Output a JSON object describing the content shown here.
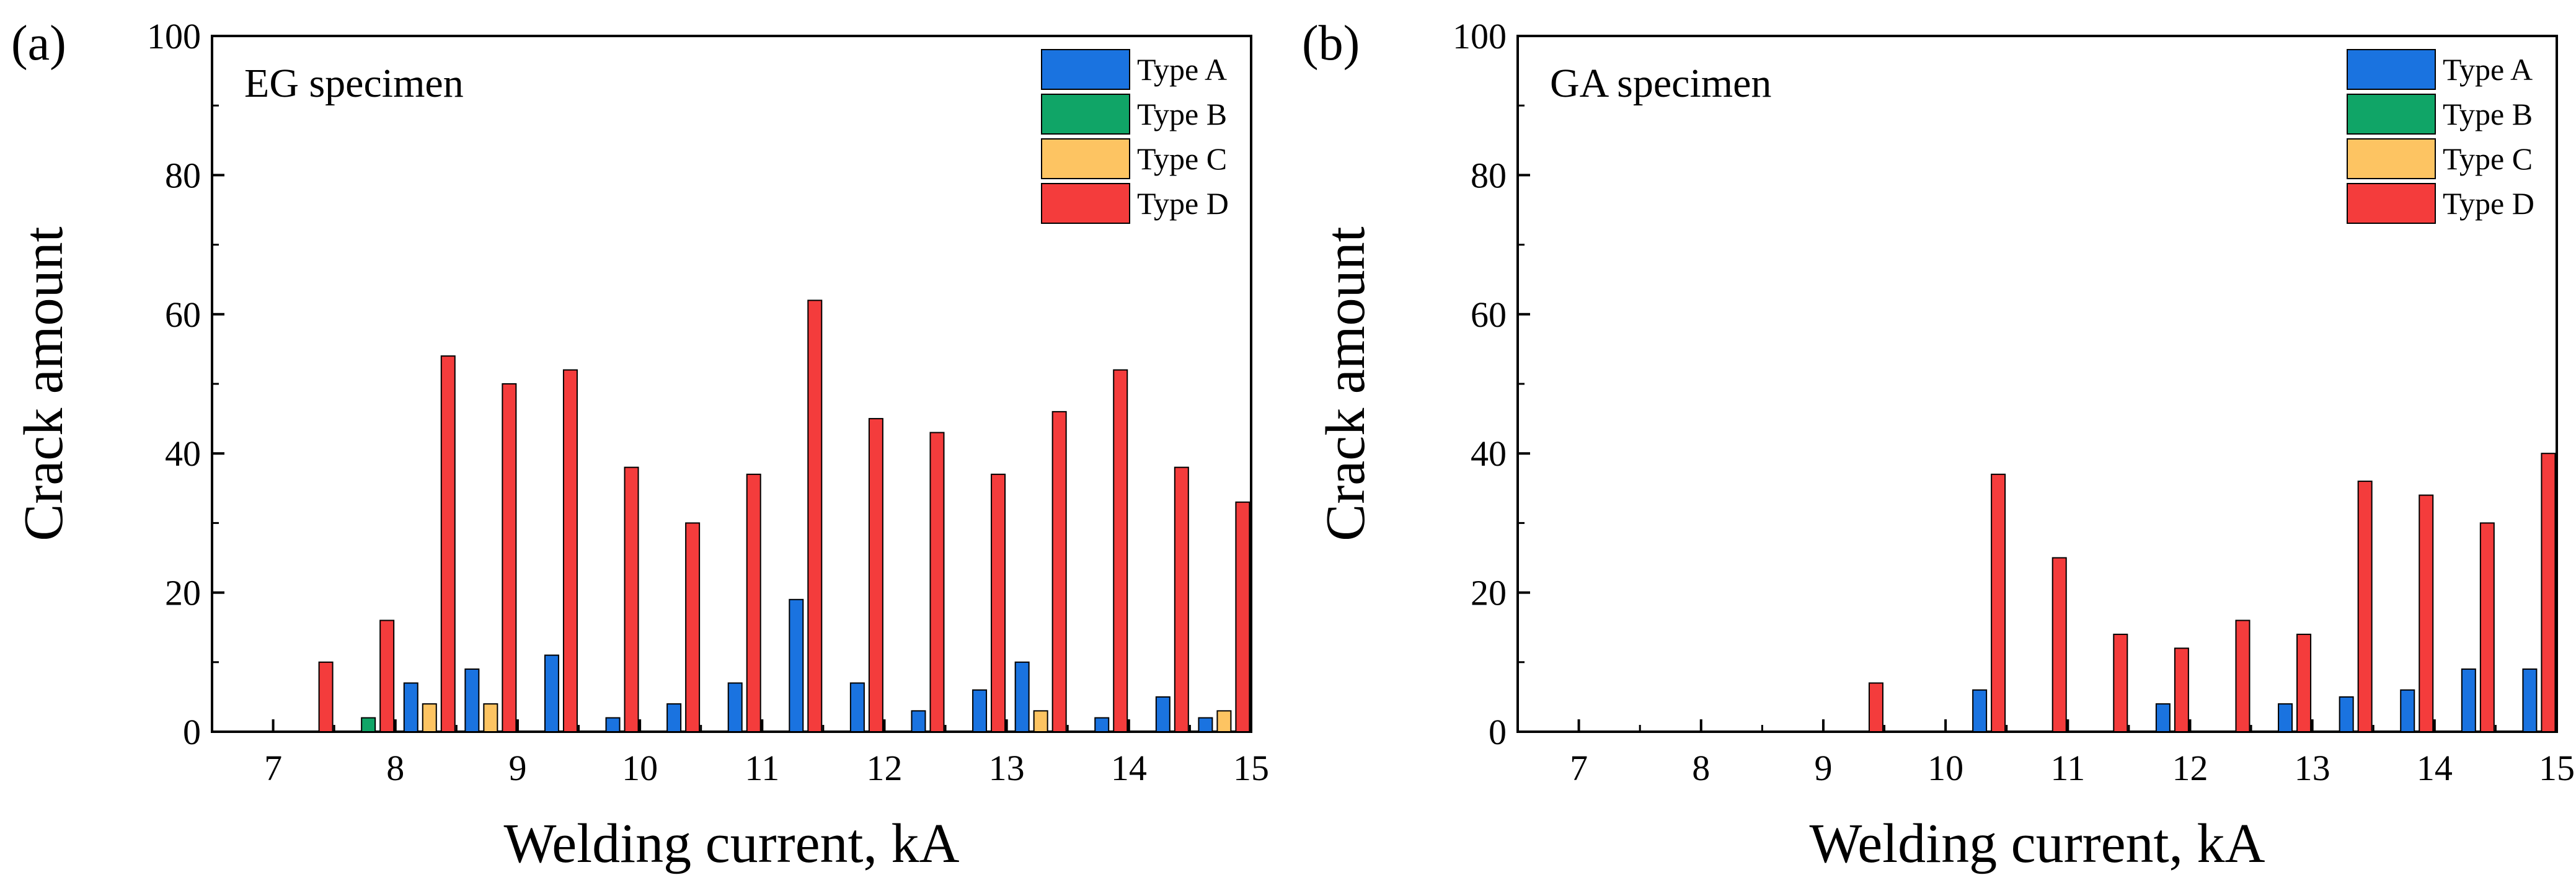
{
  "chart_data": [
    {
      "type": "bar",
      "panel": "(a)",
      "title": "EG specimen",
      "xlabel": "Welding current, kA",
      "ylabel": "Crack amount",
      "xlim": [
        6.5,
        15
      ],
      "ylim": [
        0,
        100
      ],
      "xticks": [
        7,
        8,
        9,
        10,
        11,
        12,
        13,
        14,
        15
      ],
      "yticks": [
        0,
        20,
        40,
        60,
        80,
        100
      ],
      "grid": false,
      "legend_position": "top-right",
      "group_step": 0.5,
      "x": [
        7.0,
        7.5,
        8.0,
        8.5,
        9.0,
        9.5,
        10.0,
        10.5,
        11.0,
        11.5,
        12.0,
        12.5,
        13.0,
        13.5,
        14.0,
        14.5
      ],
      "series": [
        {
          "name": "Type A",
          "color": "#1a73e0",
          "values": [
            0,
            0,
            7,
            9,
            11,
            2,
            4,
            7,
            19,
            7,
            3,
            6,
            10,
            2,
            5,
            2
          ]
        },
        {
          "name": "Type B",
          "color": "#10a567",
          "values": [
            0,
            2,
            0,
            0,
            0,
            0,
            0,
            0,
            0,
            0,
            0,
            0,
            0,
            0,
            0,
            0
          ]
        },
        {
          "name": "Type C",
          "color": "#fdc462",
          "values": [
            0,
            0,
            4,
            4,
            0,
            0,
            0,
            0,
            0,
            0,
            0,
            0,
            3,
            0,
            0,
            3
          ]
        },
        {
          "name": "Type D",
          "color": "#f43c3c",
          "values": [
            10,
            16,
            54,
            50,
            52,
            38,
            30,
            37,
            62,
            45,
            43,
            37,
            46,
            52,
            38,
            33
          ]
        }
      ]
    },
    {
      "type": "bar",
      "panel": "(b)",
      "title": "GA specimen",
      "xlabel": "Welding current, kA",
      "ylabel": "Crack amount",
      "xlim": [
        6.5,
        15
      ],
      "ylim": [
        0,
        100
      ],
      "xticks": [
        7,
        8,
        9,
        10,
        11,
        12,
        13,
        14,
        15
      ],
      "yticks": [
        0,
        20,
        40,
        60,
        80,
        100
      ],
      "grid": false,
      "legend_position": "top-right",
      "group_step": 0.5,
      "x": [
        7.0,
        7.5,
        8.0,
        8.5,
        9.0,
        9.5,
        10.0,
        10.5,
        11.0,
        11.5,
        12.0,
        12.5,
        13.0,
        13.5,
        14.0,
        14.5
      ],
      "series": [
        {
          "name": "Type A",
          "color": "#1a73e0",
          "values": [
            0,
            0,
            0,
            0,
            0,
            0,
            6,
            0,
            0,
            4,
            0,
            4,
            5,
            6,
            9,
            9
          ]
        },
        {
          "name": "Type B",
          "color": "#10a567",
          "values": [
            0,
            0,
            0,
            0,
            0,
            0,
            0,
            0,
            0,
            0,
            0,
            0,
            0,
            0,
            0,
            0
          ]
        },
        {
          "name": "Type C",
          "color": "#fdc462",
          "values": [
            0,
            0,
            0,
            0,
            0,
            0,
            0,
            0,
            0,
            0,
            0,
            0,
            0,
            0,
            0,
            0
          ]
        },
        {
          "name": "Type D",
          "color": "#f43c3c",
          "values": [
            0,
            0,
            0,
            0,
            7,
            0,
            37,
            25,
            14,
            12,
            16,
            14,
            36,
            34,
            30,
            40
          ]
        }
      ]
    }
  ]
}
